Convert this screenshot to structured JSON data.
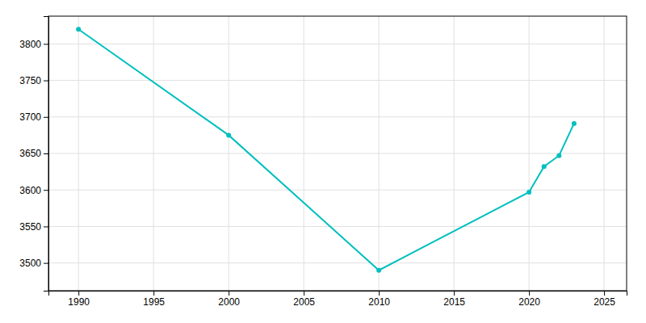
{
  "chart_data": {
    "type": "line",
    "x": [
      1990,
      2000,
      2010,
      2020,
      2021,
      2022,
      2023
    ],
    "values": [
      3820,
      3675,
      3490,
      3597,
      3632,
      3647,
      3691
    ],
    "color": "#00BFBF",
    "marker": "circle",
    "xlim": [
      1988,
      2026.5
    ],
    "ylim": [
      3462,
      3838
    ],
    "xticks": [
      1990,
      1995,
      2000,
      2005,
      2010,
      2015,
      2020,
      2025
    ],
    "yticks": [
      3500,
      3550,
      3600,
      3650,
      3700,
      3750,
      3800
    ],
    "grid": true
  }
}
